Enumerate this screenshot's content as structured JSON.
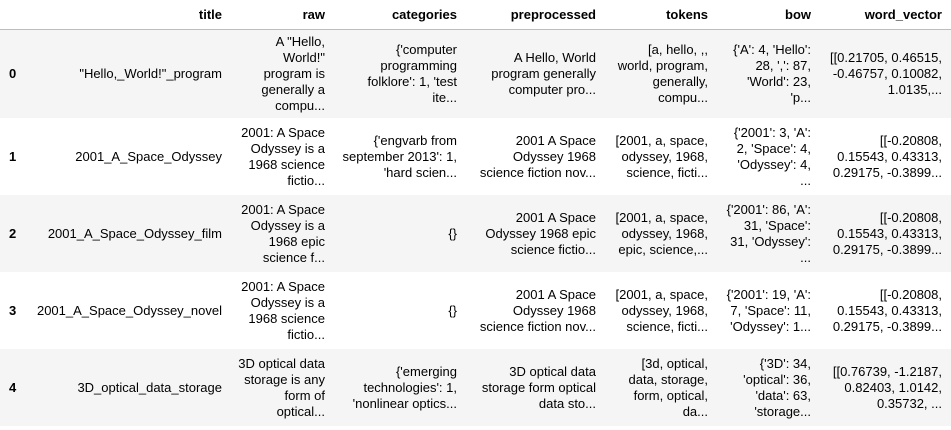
{
  "columns": [
    "",
    "title",
    "raw",
    "categories",
    "preprocessed",
    "tokens",
    "bow",
    "word_vector"
  ],
  "rows": [
    {
      "index": "0",
      "title": "\"Hello,_World!\"_program",
      "raw": "A \"Hello, World!\" program is generally a compu...",
      "categories": "{'computer programming folklore': 1, 'test ite...",
      "preprocessed": "A Hello, World program generally computer pro...",
      "tokens": "[a, hello, ,, world, program, generally, compu...",
      "bow": "{'A': 4, 'Hello': 28, ',': 87, 'World': 23, 'p...",
      "word_vector": "[[0.21705, 0.46515, -0.46757, 0.10082, 1.0135,..."
    },
    {
      "index": "1",
      "title": "2001_A_Space_Odyssey",
      "raw": "2001: A Space Odyssey is a 1968 science fictio...",
      "categories": "{'engvarb from september 2013': 1, 'hard scien...",
      "preprocessed": "2001 A Space Odyssey 1968 science fiction nov...",
      "tokens": "[2001, a, space, odyssey, 1968, science, ficti...",
      "bow": "{'2001': 3, 'A': 2, 'Space': 4, 'Odyssey': 4, ...",
      "word_vector": "[[-0.20808, 0.15543, 0.43313, 0.29175, -0.3899..."
    },
    {
      "index": "2",
      "title": "2001_A_Space_Odyssey_film",
      "raw": "2001: A Space Odyssey is a 1968 epic science f...",
      "categories": "{}",
      "preprocessed": "2001 A Space Odyssey 1968 epic science fictio...",
      "tokens": "[2001, a, space, odyssey, 1968, epic, science,...",
      "bow": "{'2001': 86, 'A': 31, 'Space': 31, 'Odyssey': ...",
      "word_vector": "[[-0.20808, 0.15543, 0.43313, 0.29175, -0.3899..."
    },
    {
      "index": "3",
      "title": "2001_A_Space_Odyssey_novel",
      "raw": "2001: A Space Odyssey is a 1968 science fictio...",
      "categories": "{}",
      "preprocessed": "2001 A Space Odyssey 1968 science fiction nov...",
      "tokens": "[2001, a, space, odyssey, 1968, science, ficti...",
      "bow": "{'2001': 19, 'A': 7, 'Space': 11, 'Odyssey': 1...",
      "word_vector": "[[-0.20808, 0.15543, 0.43313, 0.29175, -0.3899..."
    },
    {
      "index": "4",
      "title": "3D_optical_data_storage",
      "raw": "3D optical data storage is any form of optical...",
      "categories": "{'emerging technologies': 1, 'nonlinear optics...",
      "preprocessed": "3D optical data storage form optical data sto...",
      "tokens": "[3d, optical, data, storage, form, optical, da...",
      "bow": "{'3D': 34, 'optical': 36, 'data': 63, 'storage...",
      "word_vector": "[[0.76739, -1.2187, 0.82403, 1.0142, 0.35732, ..."
    }
  ]
}
